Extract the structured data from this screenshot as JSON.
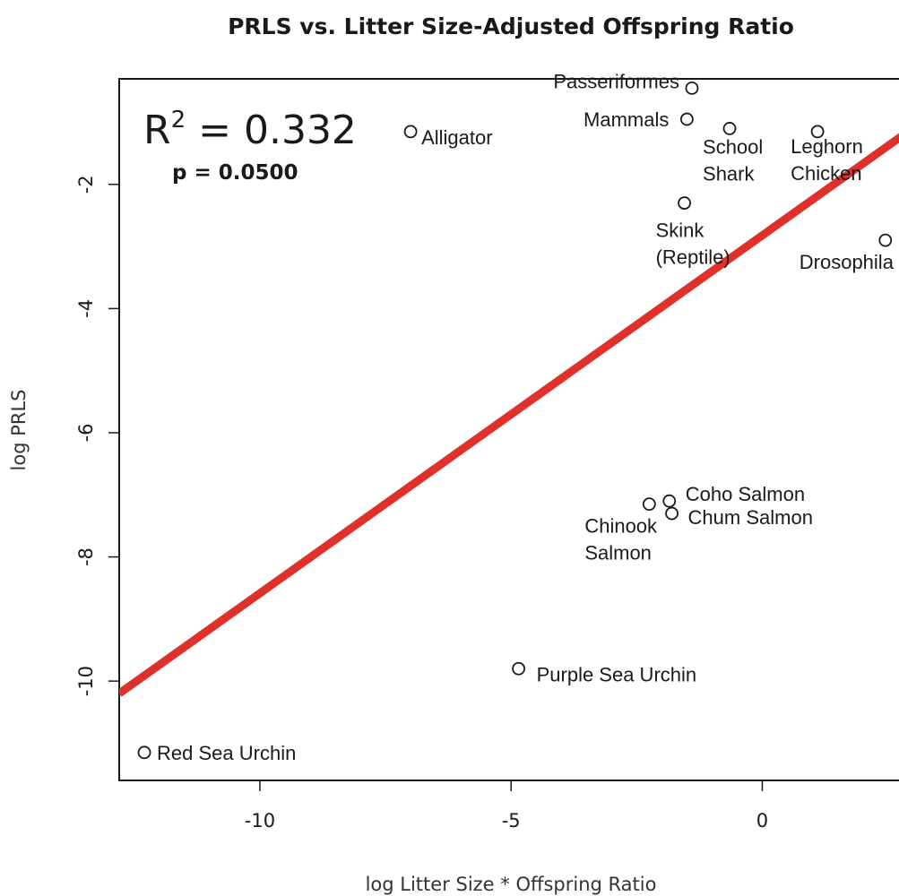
{
  "chart_data": {
    "type": "scatter",
    "title": "PRLS vs. Litter Size-Adjusted Offspring Ratio",
    "xlabel": "log Litter Size * Offspring Ratio",
    "ylabel": "log PRLS",
    "xlim": [
      -12.8,
      2.9
    ],
    "ylim": [
      -11.6,
      -0.3
    ],
    "xticks": [
      -10,
      -5,
      0
    ],
    "yticks": [
      -2,
      -4,
      -6,
      -8,
      -10
    ],
    "grid": false,
    "annotation": {
      "r2_base": "R",
      "r2_sup": "2",
      "r2_rest": " = 0.332",
      "p_text": "p = 0.0500"
    },
    "regression": {
      "color": "#e0302a",
      "x_start": -12.8,
      "y_start": -10.2,
      "x_end": 2.9,
      "y_end": -1.15
    },
    "points": [
      {
        "x": -12.3,
        "y": -11.15,
        "label": [
          "Red Sea Urchin"
        ]
      },
      {
        "x": -4.85,
        "y": -9.8,
        "label": [
          "Purple Sea Urchin"
        ]
      },
      {
        "x": -2.25,
        "y": -7.15,
        "label": [
          "Chinook",
          "Salmon"
        ]
      },
      {
        "x": -1.85,
        "y": -7.1,
        "label": [
          "Coho Salmon"
        ]
      },
      {
        "x": -1.8,
        "y": -7.3,
        "label": [
          "Chum Salmon"
        ]
      },
      {
        "x": -7.0,
        "y": -1.15,
        "label": [
          "Alligator"
        ]
      },
      {
        "x": -1.5,
        "y": -0.95,
        "label": [
          "Mammals"
        ]
      },
      {
        "x": -1.4,
        "y": -0.45,
        "label": [
          "Passeriformes"
        ]
      },
      {
        "x": -0.65,
        "y": -1.1,
        "label": [
          "School",
          "Shark"
        ]
      },
      {
        "x": -1.55,
        "y": -2.3,
        "label": [
          "Skink",
          "(Reptile)"
        ]
      },
      {
        "x": 1.1,
        "y": -1.15,
        "label": [
          "Leghorn",
          "Chicken"
        ]
      },
      {
        "x": 2.45,
        "y": -2.9,
        "label": [
          "Drosophila"
        ]
      }
    ]
  }
}
